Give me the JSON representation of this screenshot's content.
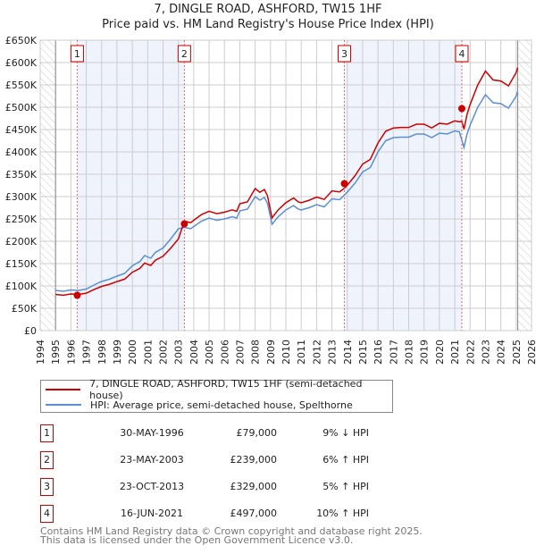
{
  "chart_data": {
    "type": "line",
    "title": "7, DINGLE ROAD, ASHFORD, TW15 1HF",
    "subtitle": "Price paid vs. HM Land Registry's House Price Index (HPI)",
    "xlim": [
      1994,
      2026
    ],
    "ylim": [
      0,
      650000
    ],
    "y_ticks": [
      "£0",
      "£50K",
      "£100K",
      "£150K",
      "£200K",
      "£250K",
      "£300K",
      "£350K",
      "£400K",
      "£450K",
      "£500K",
      "£550K",
      "£600K",
      "£650K"
    ],
    "x_ticks": [
      "1994",
      "1995",
      "1996",
      "1997",
      "1998",
      "1999",
      "2000",
      "2001",
      "2002",
      "2003",
      "2004",
      "2005",
      "2006",
      "2007",
      "2008",
      "2009",
      "2010",
      "2011",
      "2012",
      "2013",
      "2014",
      "2015",
      "2016",
      "2017",
      "2018",
      "2019",
      "2020",
      "2021",
      "2022",
      "2023",
      "2024",
      "2025",
      "2026"
    ],
    "grid": true,
    "colors": {
      "property": "#cc0000",
      "hpi": "#5b8fd4",
      "band": "#eef3fc"
    },
    "hpi_series": {
      "x": [
        1995,
        1995.5,
        1996,
        1996.5,
        1997,
        1997.5,
        1998,
        1998.5,
        1999,
        1999.5,
        2000,
        2000.5,
        2000.8,
        2001.2,
        2001.5,
        2002,
        2002.5,
        2003,
        2003.4,
        2003.8,
        2004,
        2004.5,
        2005,
        2005.5,
        2006,
        2006.5,
        2006.8,
        2007,
        2007.5,
        2008,
        2008.3,
        2008.6,
        2008.8,
        2009.1,
        2009.5,
        2010,
        2010.5,
        2010.8,
        2011,
        2011.5,
        2012,
        2012.5,
        2013,
        2013.5,
        2014,
        2014.5,
        2015,
        2015.5,
        2016,
        2016.5,
        2017,
        2017.5,
        2018,
        2018.5,
        2019,
        2019.5,
        2020,
        2020.5,
        2021,
        2021.3,
        2021.6,
        2021.8,
        2022,
        2022.5,
        2023,
        2023.5,
        2024,
        2024.5,
        2025,
        2025.1
      ],
      "y": [
        90000,
        88000,
        91000,
        90000,
        93000,
        102000,
        110000,
        115000,
        122000,
        128000,
        145000,
        155000,
        168000,
        162000,
        175000,
        185000,
        205000,
        228000,
        231000,
        228000,
        233000,
        245000,
        252000,
        247000,
        250000,
        255000,
        252000,
        268000,
        272000,
        300000,
        292000,
        298000,
        285000,
        238000,
        255000,
        270000,
        280000,
        272000,
        270000,
        275000,
        282000,
        277000,
        295000,
        293000,
        310000,
        330000,
        355000,
        365000,
        400000,
        425000,
        432000,
        433000,
        433000,
        440000,
        440000,
        432000,
        442000,
        440000,
        447000,
        445000,
        410000,
        440000,
        460000,
        500000,
        528000,
        510000,
        508000,
        498000,
        525000,
        535000
      ]
    },
    "sales": [
      {
        "n": "1",
        "x": 1996.41,
        "date": "30-MAY-1996",
        "price": 79000,
        "price_label": "£79,000",
        "hpi": "9% ↓ HPI"
      },
      {
        "n": "2",
        "x": 2003.39,
        "date": "23-MAY-2003",
        "price": 239000,
        "price_label": "£239,000",
        "hpi": "6% ↑ HPI"
      },
      {
        "n": "3",
        "x": 2013.81,
        "date": "23-OCT-2013",
        "price": 329000,
        "price_label": "£329,000",
        "hpi": "5% ↑ HPI"
      },
      {
        "n": "4",
        "x": 2021.46,
        "date": "16-JUN-2021",
        "price": 497000,
        "price_label": "£497,000",
        "hpi": "10% ↑ HPI"
      }
    ],
    "legend": {
      "property": "7, DINGLE ROAD, ASHFORD, TW15 1HF (semi-detached house)",
      "hpi": "HPI: Average price, semi-detached house, Spelthorne"
    }
  },
  "footer": {
    "line1": "Contains HM Land Registry data © Crown copyright and database right 2025.",
    "line2": "This data is licensed under the Open Government Licence v3.0."
  }
}
